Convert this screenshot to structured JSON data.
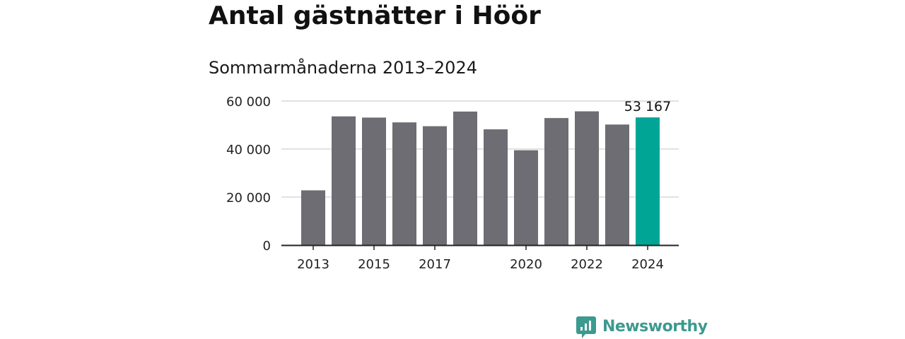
{
  "title": "Antal gästnätter i Höör",
  "subtitle": "Sommarmånaderna 2013–2024",
  "brand": {
    "name": "Newsworthy",
    "color": "#3c9a8f",
    "icon": "newsworthy-logo-icon"
  },
  "colors": {
    "bar": "#6e6d73",
    "highlight": "#00a596",
    "grid": "#d9d9d9",
    "axis": "#222222",
    "text": "#222222"
  },
  "chart_data": {
    "type": "bar",
    "title": "Antal gästnätter i Höör",
    "subtitle": "Sommarmånaderna 2013–2024",
    "xlabel": "",
    "ylabel": "",
    "categories": [
      "2013",
      "2014",
      "2015",
      "2016",
      "2017",
      "2018",
      "2019",
      "2020",
      "2021",
      "2022",
      "2023",
      "2024"
    ],
    "values": [
      22800,
      53600,
      53100,
      51100,
      49500,
      55600,
      48200,
      39500,
      52900,
      55700,
      50200,
      53167
    ],
    "x_tick_labels": [
      "2013",
      "2015",
      "2017",
      "2020",
      "2022",
      "2024"
    ],
    "y_ticks": [
      0,
      20000,
      40000,
      60000
    ],
    "y_tick_labels": [
      "0",
      "20 000",
      "40 000",
      "60 000"
    ],
    "ylim": [
      0,
      60000
    ],
    "highlight_index": 11,
    "data_labels": [
      {
        "index": 11,
        "text": "53 167"
      }
    ],
    "grid": true,
    "legend": "none"
  }
}
